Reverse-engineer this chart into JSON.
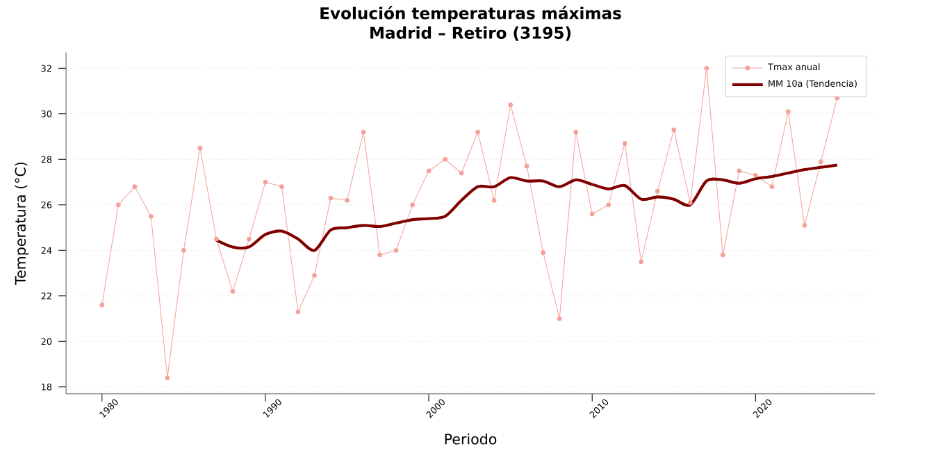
{
  "chart_data": {
    "type": "line",
    "title": "Evolución temperaturas máximas\nMadrid – Retiro (3195)",
    "xlabel": "Periodo",
    "ylabel": "Temperatura (°C)",
    "x": [
      1980,
      1981,
      1982,
      1983,
      1984,
      1985,
      1986,
      1987,
      1988,
      1989,
      1990,
      1991,
      1992,
      1993,
      1994,
      1995,
      1996,
      1997,
      1998,
      1999,
      2000,
      2001,
      2002,
      2003,
      2004,
      2005,
      2006,
      2007,
      2008,
      2009,
      2010,
      2011,
      2012,
      2013,
      2014,
      2015,
      2016,
      2017,
      2018,
      2019,
      2020,
      2021,
      2022,
      2023,
      2024,
      2025
    ],
    "series": [
      {
        "name": "Tmax anual",
        "color": "#f4a19a",
        "marker": "circle",
        "values": [
          21.6,
          26.0,
          26.8,
          25.5,
          18.4,
          24.0,
          28.5,
          24.5,
          22.2,
          24.5,
          27.0,
          26.8,
          21.3,
          22.9,
          26.3,
          26.2,
          29.2,
          23.8,
          24.0,
          26.0,
          27.5,
          28.0,
          27.4,
          29.2,
          26.2,
          30.4,
          27.7,
          23.9,
          21.0,
          29.2,
          25.6,
          26.0,
          28.7,
          23.5,
          26.6,
          29.3,
          26.1,
          32.0,
          23.8,
          27.5,
          27.3,
          26.8,
          30.1,
          25.1,
          27.9,
          30.7
        ]
      },
      {
        "name": "MM 10a (Tendencia)",
        "color": "#800000",
        "marker": "none",
        "values": [
          null,
          null,
          null,
          null,
          null,
          null,
          null,
          24.45,
          24.15,
          24.15,
          24.7,
          24.85,
          24.5,
          24.0,
          24.9,
          25.0,
          25.1,
          25.05,
          25.2,
          25.35,
          25.4,
          25.5,
          26.2,
          26.8,
          26.8,
          27.2,
          27.05,
          27.05,
          26.8,
          27.1,
          26.9,
          26.7,
          26.85,
          26.25,
          26.35,
          26.25,
          26.0,
          27.05,
          27.1,
          26.95,
          27.15,
          27.25,
          27.4,
          27.55,
          27.65,
          27.75
        ]
      }
    ],
    "xlim": [
      1977.8,
      2027.3
    ],
    "ylim": [
      17.7,
      32.7
    ],
    "xticks": [
      1980,
      1990,
      2000,
      2010,
      2020
    ],
    "yticks": [
      18,
      20,
      22,
      24,
      26,
      28,
      30,
      32
    ],
    "grid": "y",
    "legend": "top right"
  }
}
